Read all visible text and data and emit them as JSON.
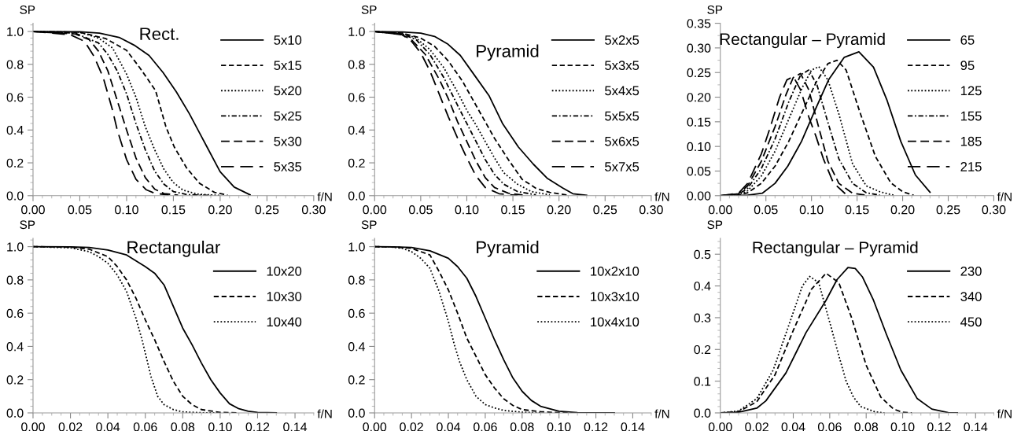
{
  "chart_data": [
    {
      "type": "line",
      "title": "Rect.",
      "xlabel": "f/N",
      "ylabel": "SP",
      "legend": "top right",
      "grid": false,
      "xlim": [
        0,
        0.3
      ],
      "ylim": [
        0,
        1.05
      ],
      "xticks": [
        {
          "value": 0,
          "label": "0.00"
        },
        {
          "value": 0.05,
          "label": "0.05"
        },
        {
          "value": 0.1,
          "label": "0.10"
        },
        {
          "value": 0.15,
          "label": "0.15"
        },
        {
          "value": 0.2,
          "label": "0.20"
        },
        {
          "value": 0.25,
          "label": "0.25"
        },
        {
          "value": 0.3,
          "label": "0.30"
        }
      ],
      "yticks": [
        {
          "value": 0,
          "label": "0.0"
        },
        0.2,
        0.4,
        0.6,
        0.8,
        {
          "value": 1,
          "label": "1.0"
        }
      ],
      "series": [
        {
          "name": "5x10",
          "color": "#000000",
          "line_style": "solid",
          "x": [
            0,
            0.05,
            0.071,
            0.092,
            0.108,
            0.124,
            0.139,
            0.153,
            0.167,
            0.186,
            0.2,
            0.215,
            0.232
          ],
          "values": [
            1,
            0.998,
            0.99,
            0.964,
            0.917,
            0.854,
            0.75,
            0.634,
            0.5,
            0.296,
            0.146,
            0.052,
            0.005
          ]
        },
        {
          "name": "5x15",
          "color": "#000000",
          "line_style": "dashed",
          "x": [
            0,
            0.05,
            0.078,
            0.1,
            0.114,
            0.131,
            0.142,
            0.151,
            0.164,
            0.178,
            0.194,
            0.208
          ],
          "values": [
            1,
            0.995,
            0.956,
            0.885,
            0.78,
            0.64,
            0.42,
            0.296,
            0.17,
            0.075,
            0.02,
            0.003
          ]
        },
        {
          "name": "5x20",
          "color": "#000000",
          "line_style": "dotted",
          "x": [
            0,
            0.05,
            0.07,
            0.085,
            0.1,
            0.11,
            0.12,
            0.13,
            0.14,
            0.15,
            0.16,
            0.175,
            0.2
          ],
          "values": [
            1,
            0.995,
            0.96,
            0.9,
            0.74,
            0.6,
            0.42,
            0.28,
            0.16,
            0.08,
            0.035,
            0.01,
            0.001
          ]
        },
        {
          "name": "5x25",
          "color": "#000000",
          "line_style": "dashdot",
          "x": [
            0,
            0.045,
            0.07,
            0.08,
            0.09,
            0.1,
            0.11,
            0.12,
            0.13,
            0.14,
            0.15,
            0.165,
            0.19
          ],
          "values": [
            1,
            0.99,
            0.93,
            0.86,
            0.76,
            0.62,
            0.44,
            0.28,
            0.15,
            0.07,
            0.025,
            0.006,
            0.001
          ]
        },
        {
          "name": "5x30",
          "color": "#000000",
          "line_style": "longdash",
          "x": [
            0,
            0.045,
            0.06,
            0.07,
            0.08,
            0.09,
            0.1,
            0.11,
            0.12,
            0.13,
            0.14,
            0.155
          ],
          "values": [
            1,
            0.985,
            0.95,
            0.88,
            0.76,
            0.58,
            0.4,
            0.23,
            0.11,
            0.04,
            0.013,
            0.003
          ]
        },
        {
          "name": "5x35",
          "color": "#000000",
          "line_style": "longerdash",
          "x": [
            0,
            0.04,
            0.055,
            0.065,
            0.075,
            0.085,
            0.09,
            0.1,
            0.11,
            0.121,
            0.13,
            0.145
          ],
          "values": [
            1,
            0.98,
            0.94,
            0.85,
            0.72,
            0.52,
            0.4,
            0.22,
            0.1,
            0.036,
            0.015,
            0.004
          ]
        }
      ]
    },
    {
      "type": "line",
      "title": "Pyramid",
      "xlabel": "f/N",
      "ylabel": "SP",
      "legend": "top right",
      "grid": false,
      "xlim": [
        0,
        0.3
      ],
      "ylim": [
        0,
        1.05
      ],
      "xticks": [
        {
          "value": 0,
          "label": "0.00"
        },
        {
          "value": 0.05,
          "label": "0.05"
        },
        {
          "value": 0.1,
          "label": "0.10"
        },
        {
          "value": 0.15,
          "label": "0.15"
        },
        {
          "value": 0.2,
          "label": "0.20"
        },
        {
          "value": 0.25,
          "label": "0.25"
        },
        {
          "value": 0.3,
          "label": "0.30"
        }
      ],
      "yticks": [
        {
          "value": 0,
          "label": "0.0"
        },
        0.2,
        0.4,
        0.6,
        0.8,
        {
          "value": 1,
          "label": "1.0"
        }
      ],
      "series": [
        {
          "name": "5x2x5",
          "color": "#000000",
          "line_style": "solid",
          "x": [
            0,
            0.03,
            0.05,
            0.065,
            0.079,
            0.093,
            0.108,
            0.124,
            0.139,
            0.156,
            0.172,
            0.187,
            0.204,
            0.215,
            0.23
          ],
          "values": [
            1,
            0.997,
            0.99,
            0.97,
            0.925,
            0.854,
            0.736,
            0.61,
            0.437,
            0.296,
            0.193,
            0.107,
            0.047,
            0.012,
            0.002
          ]
        },
        {
          "name": "5x3x5",
          "color": "#000000",
          "line_style": "dashed",
          "x": [
            0,
            0.03,
            0.05,
            0.065,
            0.08,
            0.095,
            0.11,
            0.12,
            0.13,
            0.145,
            0.16,
            0.175,
            0.19,
            0.21
          ],
          "values": [
            1,
            0.99,
            0.96,
            0.91,
            0.82,
            0.7,
            0.55,
            0.45,
            0.35,
            0.22,
            0.1,
            0.045,
            0.02,
            0.003
          ]
        },
        {
          "name": "5x4x5",
          "color": "#000000",
          "line_style": "dotted",
          "x": [
            0,
            0.03,
            0.045,
            0.06,
            0.075,
            0.09,
            0.1,
            0.11,
            0.12,
            0.13,
            0.14,
            0.155,
            0.17,
            0.19
          ],
          "values": [
            1,
            0.99,
            0.96,
            0.89,
            0.78,
            0.63,
            0.52,
            0.43,
            0.33,
            0.23,
            0.14,
            0.07,
            0.025,
            0.005
          ]
        },
        {
          "name": "5x5x5",
          "color": "#000000",
          "line_style": "dashdot",
          "x": [
            0,
            0.03,
            0.045,
            0.06,
            0.075,
            0.09,
            0.1,
            0.11,
            0.12,
            0.13,
            0.14,
            0.155,
            0.175
          ],
          "values": [
            1,
            0.985,
            0.95,
            0.86,
            0.72,
            0.55,
            0.44,
            0.33,
            0.22,
            0.13,
            0.07,
            0.025,
            0.005
          ]
        },
        {
          "name": "5x6x5",
          "color": "#000000",
          "line_style": "longdash",
          "x": [
            0,
            0.03,
            0.04,
            0.055,
            0.07,
            0.08,
            0.09,
            0.1,
            0.11,
            0.12,
            0.13,
            0.145,
            0.165
          ],
          "values": [
            1,
            0.98,
            0.95,
            0.86,
            0.71,
            0.59,
            0.45,
            0.33,
            0.21,
            0.11,
            0.05,
            0.015,
            0.002
          ]
        },
        {
          "name": "5x7x5",
          "color": "#000000",
          "line_style": "longerdash",
          "x": [
            0,
            0.03,
            0.04,
            0.05,
            0.06,
            0.07,
            0.08,
            0.09,
            0.1,
            0.11,
            0.12,
            0.135,
            0.155
          ],
          "values": [
            1,
            0.98,
            0.94,
            0.87,
            0.76,
            0.62,
            0.48,
            0.35,
            0.23,
            0.12,
            0.05,
            0.012,
            0.002
          ]
        }
      ]
    },
    {
      "type": "line",
      "title": "Rectangular – Pyramid",
      "xlabel": "f/N",
      "ylabel": "SP",
      "legend": "top right",
      "grid": false,
      "xlim": [
        0,
        0.3
      ],
      "ylim": [
        0,
        0.35
      ],
      "xticks": [
        {
          "value": 0,
          "label": "0.00"
        },
        {
          "value": 0.05,
          "label": "0.05"
        },
        {
          "value": 0.1,
          "label": "0.10"
        },
        {
          "value": 0.15,
          "label": "0.15"
        },
        {
          "value": 0.2,
          "label": "0.20"
        },
        {
          "value": 0.25,
          "label": "0.25"
        },
        {
          "value": 0.3,
          "label": "0.30"
        }
      ],
      "yticks": [
        {
          "value": 0,
          "label": "0.00"
        },
        0.05,
        {
          "value": 0.1,
          "label": "0.10"
        },
        0.15,
        {
          "value": 0.2,
          "label": "0.20"
        },
        0.25,
        {
          "value": 0.3,
          "label": "0.30"
        },
        0.35
      ],
      "series": [
        {
          "name": "65",
          "color": "#000000",
          "line_style": "solid",
          "x": [
            0,
            0.03,
            0.046,
            0.06,
            0.074,
            0.089,
            0.103,
            0.119,
            0.136,
            0.152,
            0.168,
            0.183,
            0.198,
            0.214,
            0.23
          ],
          "values": [
            0,
            0.001,
            0.005,
            0.025,
            0.06,
            0.11,
            0.17,
            0.236,
            0.281,
            0.292,
            0.261,
            0.193,
            0.11,
            0.042,
            0.007
          ]
        },
        {
          "name": "95",
          "color": "#000000",
          "line_style": "dashed",
          "x": [
            0,
            0.02,
            0.03,
            0.045,
            0.06,
            0.075,
            0.09,
            0.105,
            0.118,
            0.128,
            0.138,
            0.153,
            0.17,
            0.187,
            0.2,
            0.212
          ],
          "values": [
            0,
            0.001,
            0.006,
            0.025,
            0.06,
            0.11,
            0.17,
            0.23,
            0.268,
            0.275,
            0.255,
            0.17,
            0.08,
            0.026,
            0.008,
            0.001
          ]
        },
        {
          "name": "125",
          "color": "#000000",
          "line_style": "dotted",
          "x": [
            0,
            0.02,
            0.03,
            0.045,
            0.06,
            0.075,
            0.09,
            0.1,
            0.108,
            0.118,
            0.13,
            0.145,
            0.16,
            0.175,
            0.19
          ],
          "values": [
            0,
            0.002,
            0.01,
            0.04,
            0.09,
            0.155,
            0.22,
            0.255,
            0.262,
            0.235,
            0.166,
            0.065,
            0.02,
            0.008,
            0.001
          ]
        },
        {
          "name": "155",
          "color": "#000000",
          "line_style": "dashdot",
          "x": [
            0,
            0.02,
            0.03,
            0.045,
            0.06,
            0.075,
            0.088,
            0.097,
            0.106,
            0.117,
            0.13,
            0.145,
            0.16,
            0.175
          ],
          "values": [
            0,
            0.003,
            0.015,
            0.055,
            0.115,
            0.19,
            0.245,
            0.255,
            0.225,
            0.155,
            0.075,
            0.025,
            0.006,
            0.001
          ]
        },
        {
          "name": "185",
          "color": "#000000",
          "line_style": "longdash",
          "x": [
            0,
            0.02,
            0.03,
            0.045,
            0.06,
            0.072,
            0.08,
            0.088,
            0.097,
            0.107,
            0.118,
            0.13,
            0.145,
            0.16
          ],
          "values": [
            0,
            0.004,
            0.02,
            0.07,
            0.14,
            0.205,
            0.24,
            0.248,
            0.215,
            0.145,
            0.07,
            0.025,
            0.005,
            0.001
          ]
        },
        {
          "name": "215",
          "color": "#000000",
          "line_style": "longerdash",
          "x": [
            0,
            0.02,
            0.03,
            0.045,
            0.055,
            0.065,
            0.073,
            0.08,
            0.088,
            0.097,
            0.105,
            0.113,
            0.124,
            0.137
          ],
          "values": [
            0,
            0.005,
            0.025,
            0.085,
            0.14,
            0.2,
            0.235,
            0.242,
            0.215,
            0.16,
            0.12,
            0.075,
            0.026,
            0.004
          ]
        }
      ]
    },
    {
      "type": "line",
      "title": "Rectangular",
      "xlabel": "f/N",
      "ylabel": "SP",
      "legend": "right",
      "grid": false,
      "xlim": [
        0,
        0.15
      ],
      "ylim": [
        0,
        1.05
      ],
      "xticks": [
        {
          "value": 0,
          "label": "0.00"
        },
        0.02,
        0.04,
        0.06,
        0.08,
        {
          "value": 0.1,
          "label": "0.10"
        },
        0.12,
        0.14
      ],
      "yticks": [
        {
          "value": 0,
          "label": "0.0"
        },
        0.2,
        0.4,
        0.6,
        0.8,
        {
          "value": 1,
          "label": "1.0"
        }
      ],
      "series": [
        {
          "name": "10x20",
          "color": "#000000",
          "line_style": "solid",
          "x": [
            0,
            0.02,
            0.03,
            0.04,
            0.05,
            0.06,
            0.065,
            0.07,
            0.075,
            0.08,
            0.085,
            0.09,
            0.095,
            0.1,
            0.105,
            0.11,
            0.115,
            0.12,
            0.13
          ],
          "values": [
            1,
            0.999,
            0.995,
            0.98,
            0.95,
            0.88,
            0.84,
            0.77,
            0.64,
            0.51,
            0.41,
            0.3,
            0.2,
            0.12,
            0.055,
            0.025,
            0.01,
            0.003,
            0
          ]
        },
        {
          "name": "10x30",
          "color": "#000000",
          "line_style": "dashed",
          "x": [
            0,
            0.02,
            0.03,
            0.04,
            0.045,
            0.05,
            0.055,
            0.06,
            0.065,
            0.07,
            0.075,
            0.08,
            0.085,
            0.09,
            0.1,
            0.11
          ],
          "values": [
            1,
            0.997,
            0.985,
            0.94,
            0.88,
            0.8,
            0.69,
            0.56,
            0.44,
            0.31,
            0.19,
            0.1,
            0.05,
            0.02,
            0.003,
            0
          ]
        },
        {
          "name": "10x40",
          "color": "#000000",
          "line_style": "dotted",
          "x": [
            0,
            0.02,
            0.03,
            0.035,
            0.04,
            0.045,
            0.05,
            0.055,
            0.058,
            0.06,
            0.063,
            0.0666,
            0.07,
            0.075,
            0.08,
            0.09,
            0.1
          ],
          "values": [
            1,
            0.993,
            0.97,
            0.94,
            0.9,
            0.83,
            0.73,
            0.57,
            0.45,
            0.36,
            0.22,
            0.1,
            0.05,
            0.02,
            0.006,
            0.001,
            0
          ]
        }
      ]
    },
    {
      "type": "line",
      "title": "Pyramid",
      "xlabel": "f/N",
      "ylabel": "SP",
      "legend": "right",
      "grid": false,
      "xlim": [
        0,
        0.15
      ],
      "ylim": [
        0,
        1.05
      ],
      "xticks": [
        {
          "value": 0,
          "label": "0.00"
        },
        0.02,
        0.04,
        0.06,
        0.08,
        {
          "value": 0.1,
          "label": "0.10"
        },
        0.12,
        0.14
      ],
      "yticks": [
        {
          "value": 0,
          "label": "0.0"
        },
        0.2,
        0.4,
        0.6,
        0.8,
        {
          "value": 1,
          "label": "1.0"
        }
      ],
      "series": [
        {
          "name": "10x2x10",
          "color": "#000000",
          "line_style": "solid",
          "x": [
            0,
            0.01,
            0.02,
            0.03,
            0.04,
            0.045,
            0.05,
            0.055,
            0.06,
            0.065,
            0.07,
            0.075,
            0.08,
            0.085,
            0.09,
            0.1,
            0.11,
            0.13
          ],
          "values": [
            1,
            0.999,
            0.995,
            0.975,
            0.93,
            0.88,
            0.81,
            0.7,
            0.57,
            0.44,
            0.32,
            0.21,
            0.13,
            0.075,
            0.04,
            0.01,
            0.002,
            0
          ]
        },
        {
          "name": "10x3x10",
          "color": "#000000",
          "line_style": "dashed",
          "x": [
            0,
            0.01,
            0.02,
            0.03,
            0.035,
            0.04,
            0.045,
            0.05,
            0.055,
            0.06,
            0.065,
            0.07,
            0.075,
            0.08,
            0.09,
            0.1,
            0.11
          ],
          "values": [
            1,
            0.998,
            0.99,
            0.95,
            0.85,
            0.74,
            0.6,
            0.45,
            0.34,
            0.23,
            0.15,
            0.085,
            0.045,
            0.02,
            0.007,
            0.001,
            0
          ]
        },
        {
          "name": "10x4x10",
          "color": "#000000",
          "line_style": "dotted",
          "x": [
            0,
            0.01,
            0.015,
            0.02,
            0.025,
            0.03,
            0.035,
            0.04,
            0.043,
            0.046,
            0.05,
            0.055,
            0.06,
            0.065,
            0.07,
            0.08,
            0.09
          ],
          "values": [
            1,
            0.997,
            0.99,
            0.97,
            0.93,
            0.87,
            0.73,
            0.55,
            0.42,
            0.31,
            0.2,
            0.1,
            0.05,
            0.03,
            0.015,
            0.004,
            0
          ]
        }
      ]
    },
    {
      "type": "line",
      "title": "Rectangular – Pyramid",
      "xlabel": "f/N",
      "ylabel": "SP",
      "legend": "right",
      "grid": false,
      "xlim": [
        0,
        0.15
      ],
      "ylim": [
        0,
        0.55
      ],
      "xticks": [
        {
          "value": 0,
          "label": "0.00"
        },
        0.02,
        0.04,
        0.06,
        0.08,
        {
          "value": 0.1,
          "label": "0.10"
        },
        0.12,
        0.14
      ],
      "yticks": [
        {
          "value": 0,
          "label": "0.0"
        },
        0.1,
        0.2,
        0.3,
        0.4,
        0.5
      ],
      "series": [
        {
          "name": "230",
          "color": "#000000",
          "line_style": "solid",
          "x": [
            0,
            0.01,
            0.02,
            0.025,
            0.036,
            0.047,
            0.058,
            0.064,
            0.07,
            0.074,
            0.078,
            0.084,
            0.091,
            0.099,
            0.108,
            0.116,
            0.125,
            0.13
          ],
          "values": [
            0,
            0.002,
            0.015,
            0.038,
            0.126,
            0.253,
            0.355,
            0.42,
            0.458,
            0.455,
            0.428,
            0.355,
            0.249,
            0.135,
            0.045,
            0.012,
            0.001,
            0
          ]
        },
        {
          "name": "340",
          "color": "#000000",
          "line_style": "dashed",
          "x": [
            0,
            0.01,
            0.02,
            0.03,
            0.04,
            0.05,
            0.058,
            0.065,
            0.072,
            0.08,
            0.088,
            0.095,
            0.1,
            0.105
          ],
          "values": [
            0,
            0.004,
            0.035,
            0.12,
            0.26,
            0.39,
            0.44,
            0.41,
            0.3,
            0.15,
            0.05,
            0.012,
            0.002,
            0
          ]
        },
        {
          "name": "450",
          "color": "#000000",
          "line_style": "dotted",
          "x": [
            0,
            0.01,
            0.02,
            0.029,
            0.039,
            0.045,
            0.049,
            0.054,
            0.061,
            0.065,
            0.069,
            0.073,
            0.077,
            0.085,
            0.09
          ],
          "values": [
            0,
            0.006,
            0.045,
            0.135,
            0.3,
            0.4,
            0.43,
            0.41,
            0.265,
            0.18,
            0.1,
            0.05,
            0.02,
            0.003,
            0
          ]
        }
      ]
    }
  ]
}
